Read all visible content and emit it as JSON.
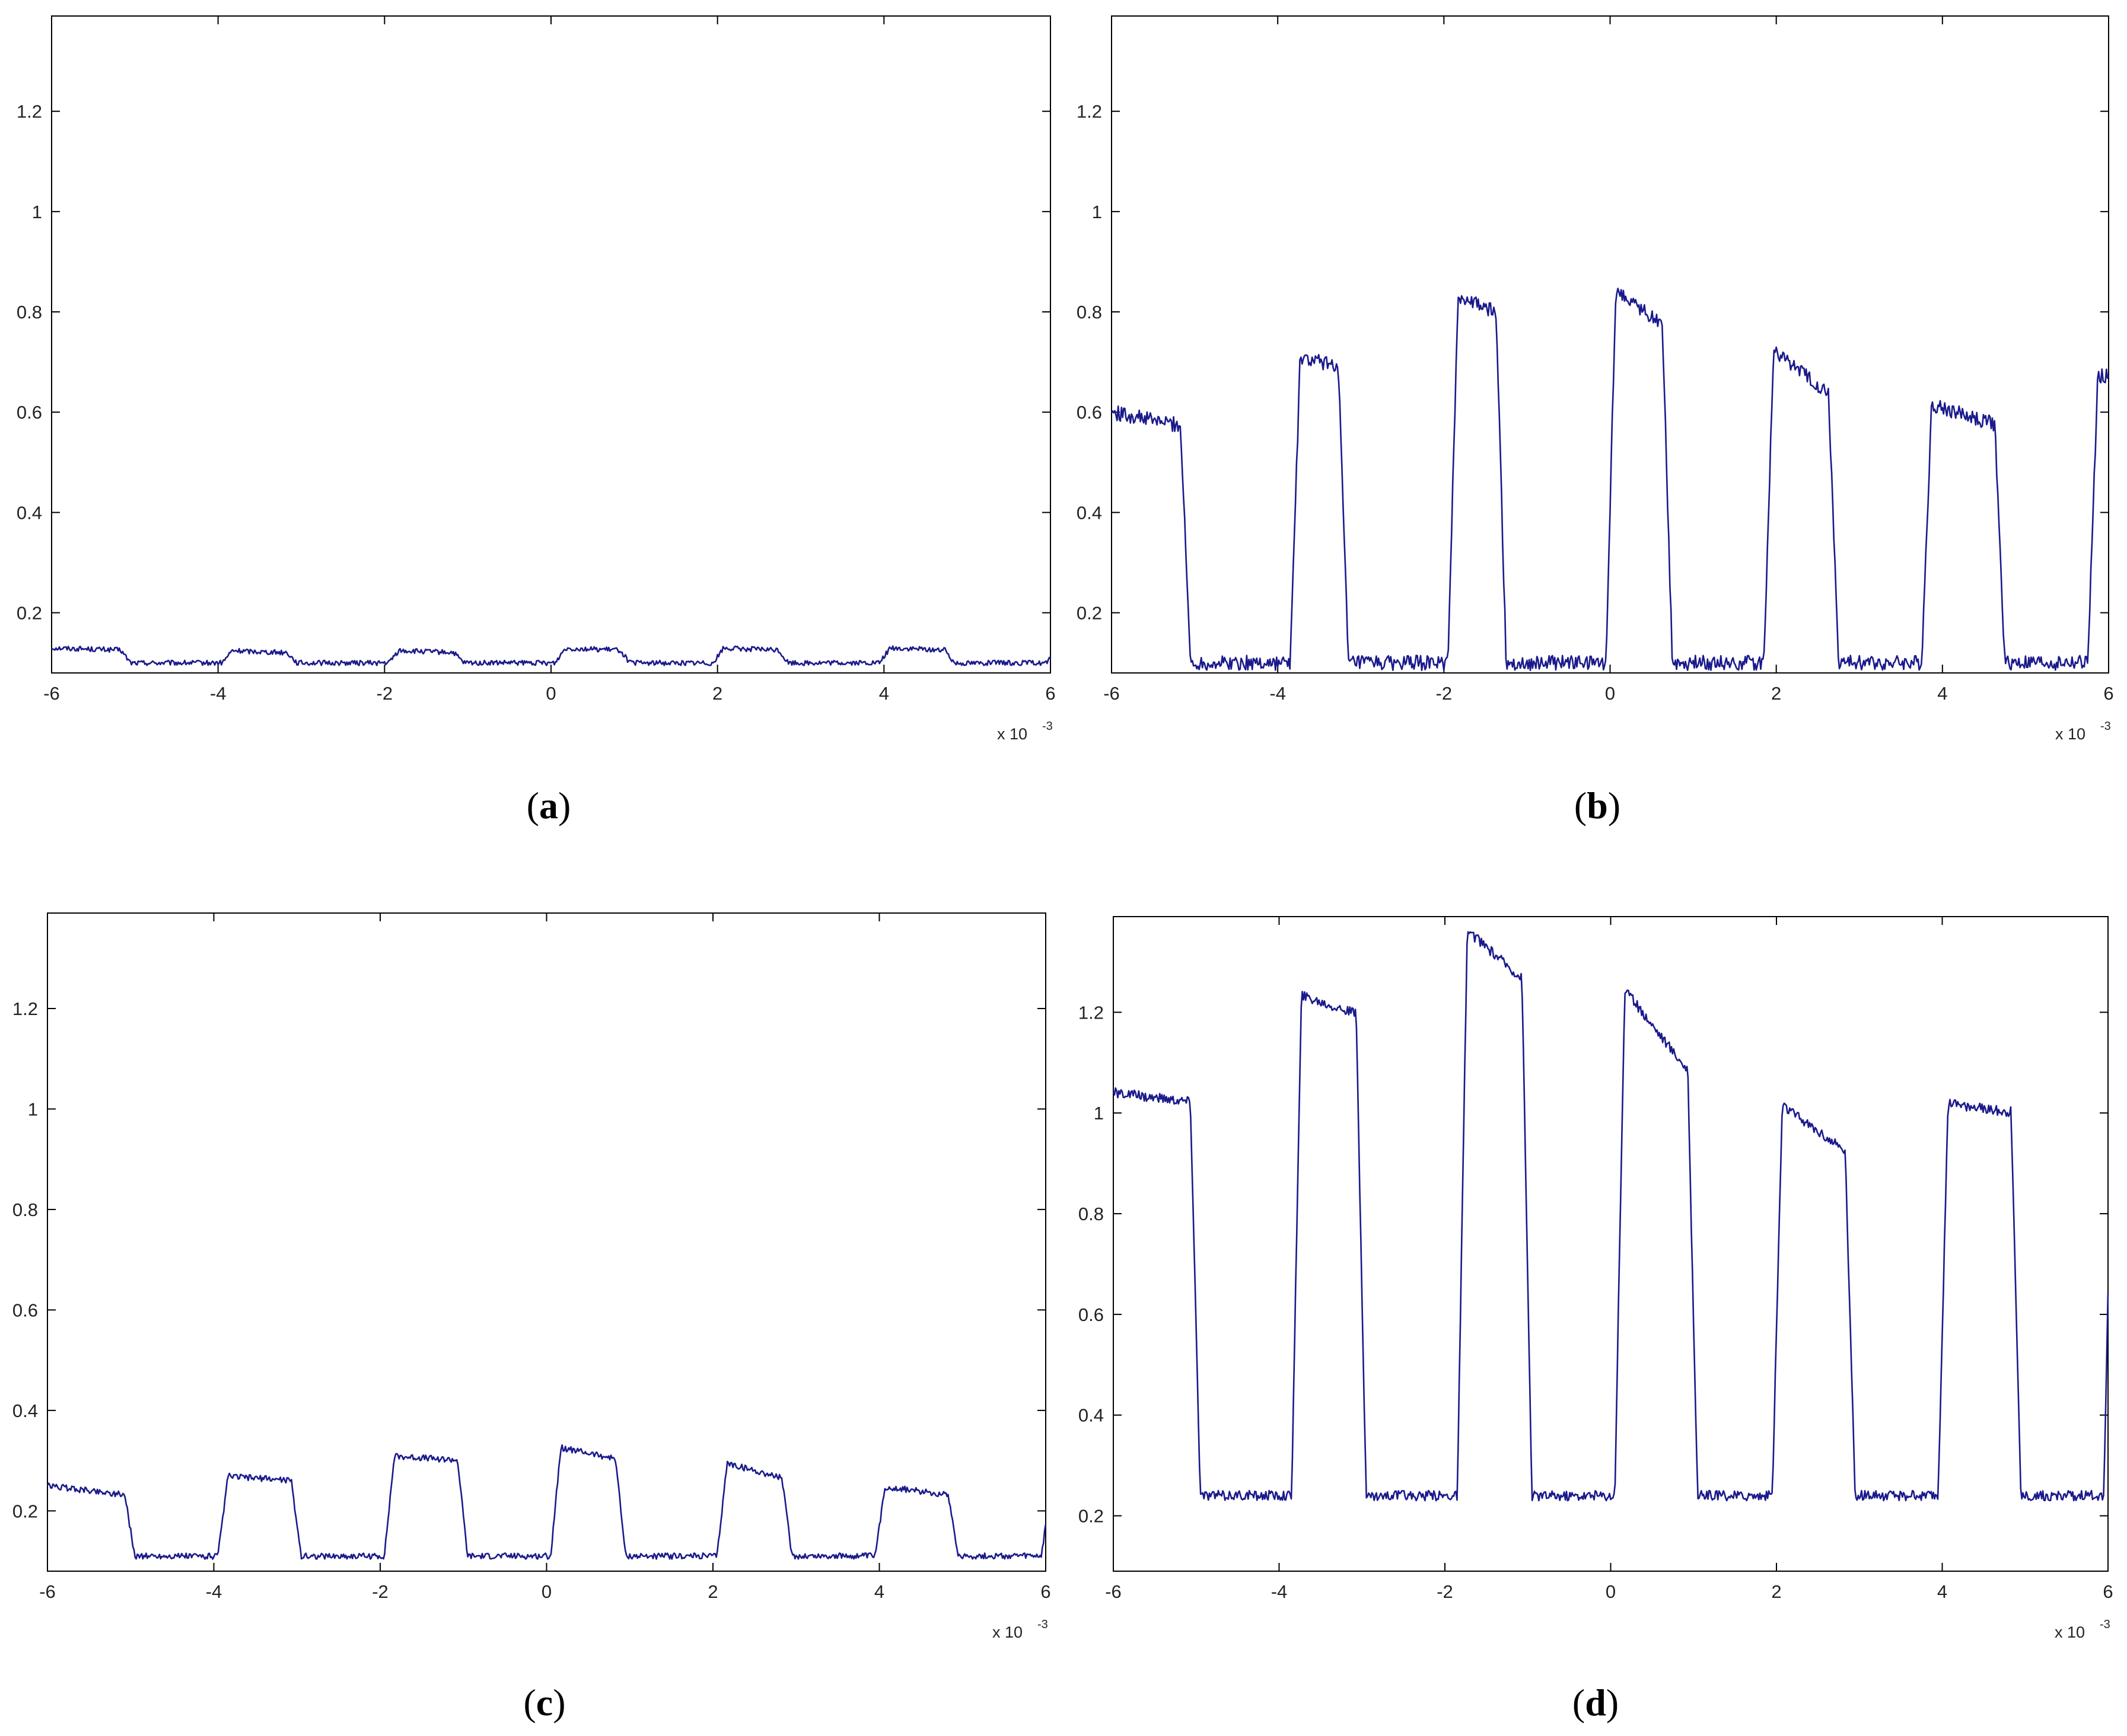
{
  "chart_data": [
    {
      "panel": "a",
      "type": "line",
      "x_tick_labels": [
        "-6",
        "-4",
        "-2",
        "0",
        "2",
        "4",
        "6"
      ],
      "y_tick_labels": [
        "0.2",
        "0.4",
        "0.6",
        "0.8",
        "1",
        "1.2"
      ],
      "x_exponent_label": "x 10",
      "x_exponent_power": "-3",
      "xlim": [
        -0.006,
        0.006
      ],
      "ylim": [
        0.08,
        1.39
      ],
      "grid": false,
      "line_color": "#1a1a8c",
      "waveform": {
        "period": 0.002,
        "x_start": -0.006,
        "x_end": 0.006,
        "low": 0.1,
        "edges": [
          -0.00505,
          -0.00395,
          -0.00305,
          -0.00195,
          -0.00105,
          5e-05,
          0.00095,
          0.00195,
          0.00285,
          0.00395,
          0.00485,
          0.00595
        ],
        "highs": [
          [
            0.13,
            0.125
          ],
          [
            0.125,
            0.12
          ],
          [
            0.125,
            0.12
          ],
          [
            0.13,
            0.125
          ],
          [
            0.13,
            0.125
          ],
          [
            0.13,
            0.125
          ],
          [
            0.12,
            0.12
          ]
        ],
        "first_high_start": 0.125,
        "noise": 0.005
      }
    },
    {
      "panel": "b",
      "type": "line",
      "x_tick_labels": [
        "-6",
        "-4",
        "-2",
        "0",
        "2",
        "4",
        "6"
      ],
      "y_tick_labels": [
        "0.2",
        "0.4",
        "0.6",
        "0.8",
        "1",
        "1.2"
      ],
      "x_exponent_label": "x 10",
      "x_exponent_power": "-3",
      "xlim": [
        -0.006,
        0.006
      ],
      "ylim": [
        0.08,
        1.39
      ],
      "grid": false,
      "line_color": "#1a1a8c",
      "waveform": {
        "period": 0.002,
        "x_start": -0.006,
        "x_end": 0.006,
        "low": 0.1,
        "edges": [
          -0.00505,
          -0.00385,
          -0.00315,
          -0.00195,
          -0.00125,
          -5e-05,
          0.00075,
          0.00185,
          0.00275,
          0.00375,
          0.00475,
          0.00575
        ],
        "highs": [
          [
            0.6,
            0.57
          ],
          [
            0.71,
            0.69
          ],
          [
            0.84,
            0.79
          ],
          [
            0.86,
            0.76
          ],
          [
            0.74,
            0.62
          ],
          [
            0.62,
            0.57
          ],
          [
            0.68,
            0.67
          ]
        ],
        "first_high_start": 0.6,
        "noise": 0.015
      }
    },
    {
      "panel": "c",
      "type": "line",
      "x_tick_labels": [
        "-6",
        "-4",
        "-2",
        "0",
        "2",
        "4",
        "6"
      ],
      "y_tick_labels": [
        "0.2",
        "0.4",
        "0.6",
        "0.8",
        "1",
        "1.2"
      ],
      "x_exponent_label": "x 10",
      "x_exponent_power": "-3",
      "xlim": [
        -0.006,
        0.006
      ],
      "ylim": [
        0.08,
        1.39
      ],
      "grid": false,
      "line_color": "#1a1a8c",
      "waveform": {
        "period": 0.002,
        "x_start": -0.006,
        "x_end": 0.006,
        "low": 0.11,
        "edges": [
          -0.00495,
          -0.00395,
          -0.00295,
          -0.00195,
          -0.00095,
          5e-05,
          0.00095,
          0.00205,
          0.00295,
          0.00395,
          0.00495,
          0.00595
        ],
        "highs": [
          [
            0.25,
            0.23
          ],
          [
            0.27,
            0.26
          ],
          [
            0.31,
            0.3
          ],
          [
            0.33,
            0.3
          ],
          [
            0.3,
            0.26
          ],
          [
            0.25,
            0.23
          ],
          [
            0.26,
            0.26
          ]
        ],
        "first_high_start": 0.25,
        "noise": 0.006
      }
    },
    {
      "panel": "d",
      "type": "line",
      "x_tick_labels": [
        "-6",
        "-4",
        "-2",
        "0",
        "2",
        "4",
        "6"
      ],
      "y_tick_labels": [
        "0.2",
        "0.4",
        "0.6",
        "0.8",
        "1",
        "1.2"
      ],
      "x_exponent_label": "x 10",
      "x_exponent_power": "-3",
      "xlim": [
        -0.006,
        0.006
      ],
      "ylim": [
        0.09,
        1.39
      ],
      "grid": false,
      "line_color": "#1a1a8c",
      "waveform": {
        "period": 0.002,
        "x_start": -0.006,
        "x_end": 0.006,
        "low": 0.24,
        "edges": [
          -0.00495,
          -0.00385,
          -0.00295,
          -0.00185,
          -0.00095,
          5e-05,
          0.00105,
          0.00195,
          0.00295,
          0.00395,
          0.00495,
          0.00595
        ],
        "highs": [
          [
            1.04,
            1.02
          ],
          [
            1.24,
            1.19
          ],
          [
            1.38,
            1.25
          ],
          [
            1.27,
            1.06
          ],
          [
            1.03,
            0.91
          ],
          [
            1.02,
            1.0
          ],
          [
            1.21,
            1.21
          ]
        ],
        "first_high_start": 1.03,
        "noise": 0.01
      }
    }
  ],
  "labels": {
    "a": {
      "open": "(",
      "letter": "a",
      "close": ")"
    },
    "b": {
      "open": "(",
      "letter": "b",
      "close": ")"
    },
    "c": {
      "open": "(",
      "letter": "c",
      "close": ")"
    },
    "d": {
      "open": "(",
      "letter": "d",
      "close": ")"
    }
  }
}
